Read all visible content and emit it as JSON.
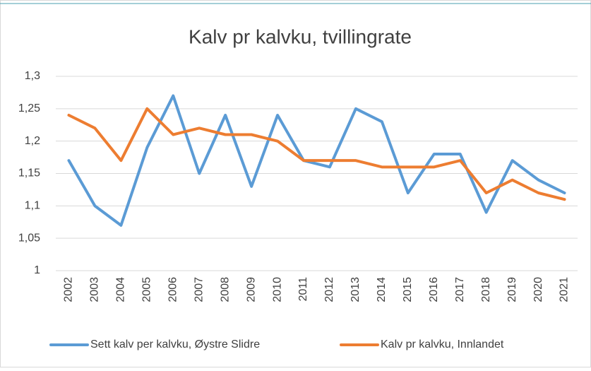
{
  "chart_data": {
    "type": "line",
    "title": "Kalv pr kalvku, tvillingrate",
    "categories": [
      "2002",
      "2003",
      "2004",
      "2005",
      "2006",
      "2007",
      "2008",
      "2009",
      "2010",
      "2011",
      "2012",
      "2013",
      "2014",
      "2015",
      "2016",
      "2017",
      "2018",
      "2019",
      "2020",
      "2021"
    ],
    "series": [
      {
        "name": "Sett kalv per kalvku, Øystre Slidre",
        "color": "#5b9bd5",
        "values": [
          1.17,
          1.1,
          1.07,
          1.19,
          1.27,
          1.15,
          1.24,
          1.13,
          1.24,
          1.17,
          1.16,
          1.25,
          1.23,
          1.12,
          1.18,
          1.18,
          1.09,
          1.17,
          1.14,
          1.12
        ]
      },
      {
        "name": "Kalv pr kalvku, Innlandet",
        "color": "#ed7d31",
        "values": [
          1.24,
          1.22,
          1.17,
          1.25,
          1.21,
          1.22,
          1.21,
          1.21,
          1.2,
          1.17,
          1.17,
          1.17,
          1.16,
          1.16,
          1.16,
          1.17,
          1.12,
          1.14,
          1.12,
          1.11
        ]
      }
    ],
    "ylim": [
      1,
      1.3
    ],
    "yticks": [
      1,
      {
        "value": 1.05,
        "label": "1,05"
      },
      {
        "value": 1.1,
        "label": "1,1"
      },
      {
        "value": 1.15,
        "label": "1,15"
      },
      {
        "value": 1.2,
        "label": "1,2"
      },
      {
        "value": 1.25,
        "label": "1,25"
      },
      {
        "value": 1.3,
        "label": "1,3"
      }
    ],
    "grid": true,
    "legend": "bottom"
  }
}
